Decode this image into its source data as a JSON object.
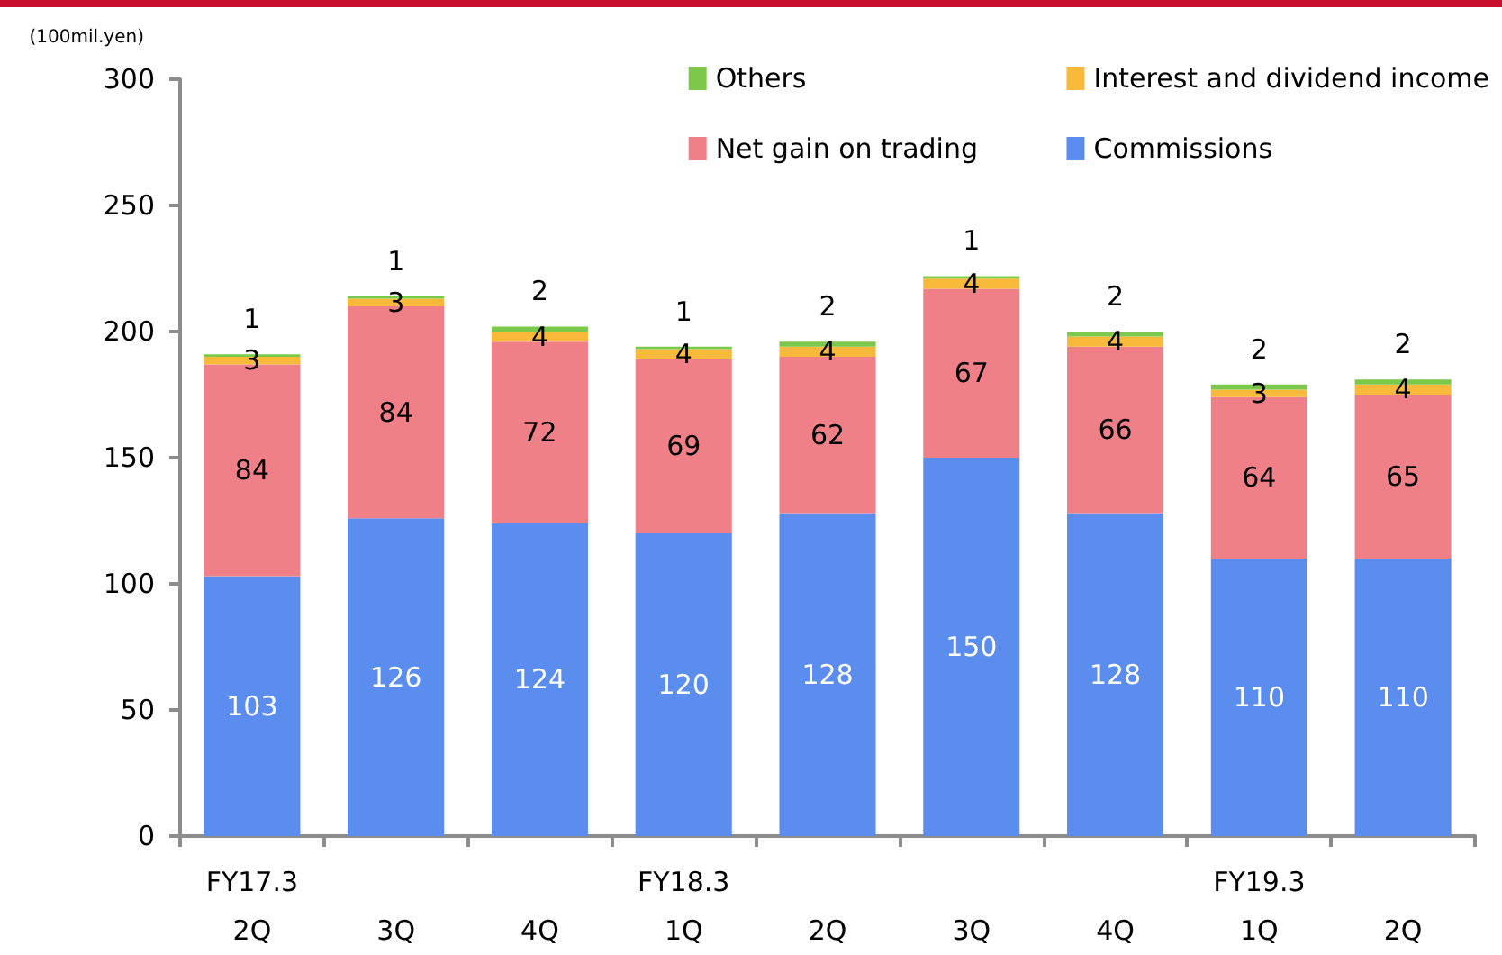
{
  "chart_data": {
    "type": "bar",
    "stacked": true,
    "ylabel": "(100mil.yen)",
    "categories": [
      "FY17.3\n2Q",
      "3Q",
      "4Q",
      "FY18.3\n1Q",
      "2Q",
      "3Q",
      "4Q",
      "FY19.3\n1Q",
      "2Q"
    ],
    "series": [
      {
        "name": "Commissions",
        "color": "#5b8def",
        "values": [
          103,
          126,
          124,
          120,
          128,
          150,
          128,
          110,
          110
        ]
      },
      {
        "name": "Net gain on trading",
        "color": "#ef8088",
        "values": [
          84,
          84,
          72,
          69,
          62,
          67,
          66,
          64,
          65
        ]
      },
      {
        "name": "Interest and dividend income",
        "color": "#f9b93a",
        "values": [
          3,
          3,
          4,
          4,
          4,
          4,
          4,
          3,
          4
        ]
      },
      {
        "name": "Others",
        "color": "#7cc84a",
        "values": [
          1,
          1,
          2,
          1,
          2,
          1,
          2,
          2,
          2
        ]
      }
    ],
    "ylim": [
      0,
      300
    ],
    "yticks": [
      0,
      50,
      100,
      150,
      200,
      250,
      300
    ],
    "grid": false,
    "legend": "top right",
    "data_labels": true
  }
}
